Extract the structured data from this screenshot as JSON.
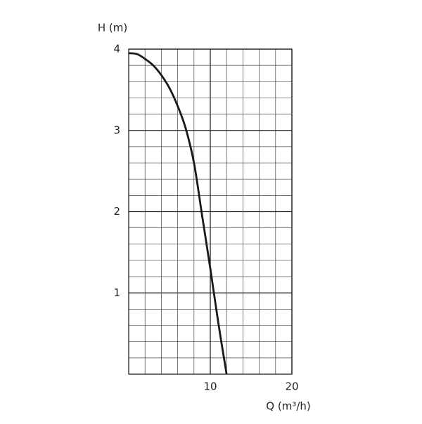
{
  "chart_data": {
    "type": "line",
    "x_label": "Q (m³/h)",
    "y_label": "H (m)",
    "x": [
      0,
      1,
      2,
      3,
      4,
      5,
      6,
      7,
      8,
      9,
      10,
      11,
      12
    ],
    "series": [
      {
        "color": "#1a1a1a",
        "values": [
          3.95,
          3.94,
          3.88,
          3.8,
          3.68,
          3.52,
          3.3,
          3.02,
          2.6,
          1.95,
          1.3,
          0.62,
          0
        ]
      }
    ],
    "xlim": [
      0,
      20
    ],
    "ylim": [
      0,
      4
    ],
    "xticks": [
      10,
      20
    ],
    "yticks": [
      1,
      2,
      3,
      4
    ],
    "grid": true
  }
}
